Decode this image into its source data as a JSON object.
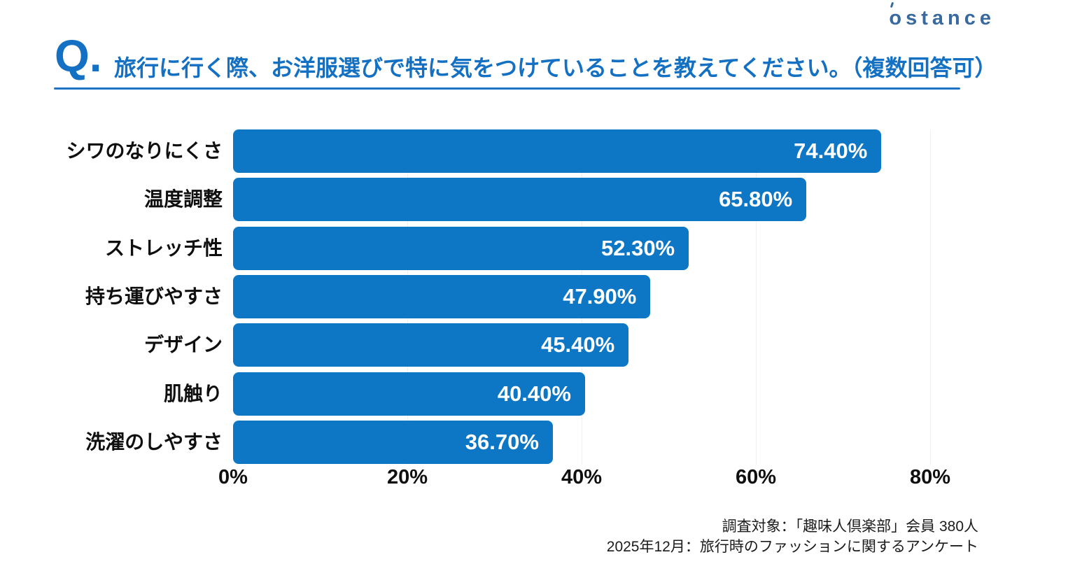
{
  "logo": {
    "o": "o",
    "rest": "stance"
  },
  "question": {
    "prefix": "Q.",
    "text": "旅行に行く際、お洋服選びで特に気をつけていることを教えてください。（複数回答可）"
  },
  "chart_data": {
    "type": "bar",
    "orientation": "horizontal",
    "title": "旅行に行く際、お洋服選びで特に気をつけていることを教えてください。（複数回答可）",
    "categories": [
      "シワのなりにくさ",
      "温度調整",
      "ストレッチ性",
      "持ち運びやすさ",
      "デザイン",
      "肌触り",
      "洗濯のしやすさ"
    ],
    "values": [
      74.4,
      65.8,
      52.3,
      47.9,
      45.4,
      40.4,
      36.7
    ],
    "value_labels": [
      "74.40%",
      "65.80%",
      "52.30%",
      "47.90%",
      "45.40%",
      "40.40%",
      "36.70%"
    ],
    "x_ticks": [
      "0%",
      "20%",
      "40%",
      "60%",
      "80%"
    ],
    "x_tick_values": [
      0,
      20,
      40,
      60,
      80
    ],
    "xlim": [
      0,
      80
    ],
    "bar_color": "#0E77C5",
    "value_label_color": "#ffffff",
    "grid": "faint-vertical",
    "legend": "none"
  },
  "footer": {
    "line1": "調査対象：「趣味人倶楽部」会員 380人",
    "line2": "2025年12月：旅行時のファッションに関するアンケート"
  },
  "colors": {
    "accent_blue": "#1470C2",
    "bar_blue": "#0E77C5",
    "logo_blue": "#38699F",
    "underline_blue": "#1E74C4",
    "gridline": "#f0f0f0",
    "text": "#0f0f0f"
  }
}
